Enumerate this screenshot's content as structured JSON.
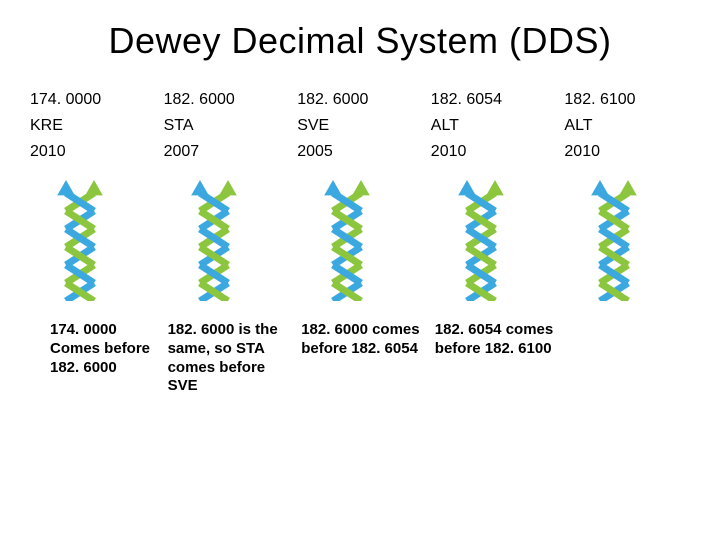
{
  "title": "Dewey Decimal System (DDS)",
  "columns": [
    {
      "dewey": "174. 0000",
      "code": "KRE",
      "year": "2010"
    },
    {
      "dewey": "182. 6000",
      "code": "STA",
      "year": "2007"
    },
    {
      "dewey": "182. 6000",
      "code": "SVE",
      "year": "2005"
    },
    {
      "dewey": "182. 6054",
      "code": "ALT",
      "year": "2010"
    },
    {
      "dewey": "182. 6100",
      "code": "ALT",
      "year": "2010"
    }
  ],
  "explanations": [
    "174. 0000 Comes before 182. 6000",
    "182. 6000 is the same, so STA comes before SVE",
    "182. 6000 comes before 182. 6054",
    "182. 6054 comes before 182. 6100"
  ],
  "helix": {
    "blue": "#3ba9e0",
    "green": "#8cc63f",
    "width": 70,
    "height": 130
  },
  "colors": {
    "background": "#ffffff",
    "text": "#000000"
  },
  "fonts": {
    "title_size": 36,
    "cell_size": 16,
    "exp_size": 15
  }
}
